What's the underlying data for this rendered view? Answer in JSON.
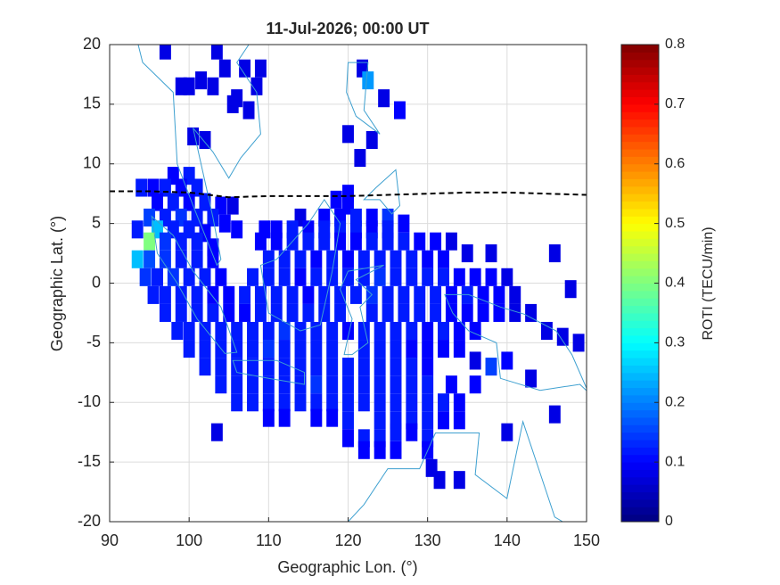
{
  "chart_data": {
    "type": "cellmap",
    "title": "11-Jul-2026; 00:00 UT",
    "x_label": "Geographic Lon. (°)",
    "y_label": "Geographic Lat. (°)",
    "colorbar_label": "ROTI (TECU/min)",
    "xlim": [
      90,
      150
    ],
    "xticks": [
      90,
      100,
      110,
      120,
      130,
      140,
      150
    ],
    "ylim": [
      -20,
      20
    ],
    "yticks": [
      -20,
      -15,
      -10,
      -5,
      0,
      5,
      10,
      15,
      20
    ],
    "clim": [
      0,
      0.8
    ],
    "cticks": [
      0,
      0.1,
      0.2,
      0.3,
      0.4,
      0.5,
      0.6,
      0.7,
      0.8
    ],
    "colormap": "jet",
    "grid": true,
    "equator": {
      "color": "#000000",
      "x": [
        90,
        95,
        100,
        105,
        110,
        115,
        120,
        125,
        130,
        135,
        140,
        145,
        150
      ],
      "y": [
        7.7,
        7.7,
        7.6,
        7.2,
        7.3,
        7.3,
        7.3,
        7.4,
        7.5,
        7.6,
        7.6,
        7.5,
        7.4
      ]
    },
    "points": [
      [
        97,
        19.5,
        0.08
      ],
      [
        103.5,
        19.5,
        0.08
      ],
      [
        104.5,
        18,
        0.08
      ],
      [
        107,
        18,
        0.08
      ],
      [
        109,
        18,
        0.08
      ],
      [
        121.8,
        18,
        0.08
      ],
      [
        122.5,
        17,
        0.22
      ],
      [
        101.5,
        17,
        0.08
      ],
      [
        99,
        16.5,
        0.08
      ],
      [
        108.5,
        16.5,
        0.08
      ],
      [
        100,
        16.5,
        0.08
      ],
      [
        103,
        16.5,
        0.08
      ],
      [
        106,
        15.5,
        0.08
      ],
      [
        124.5,
        15.5,
        0.08
      ],
      [
        126.5,
        14.5,
        0.1
      ],
      [
        105.5,
        15,
        0.08
      ],
      [
        107.5,
        14.5,
        0.08
      ],
      [
        100.5,
        12.3,
        0.08
      ],
      [
        102,
        12,
        0.08
      ],
      [
        120,
        12.5,
        0.08
      ],
      [
        123,
        12,
        0.08
      ],
      [
        121.5,
        10.5,
        0.08
      ],
      [
        98,
        9,
        0.1
      ],
      [
        100,
        9,
        0.12
      ],
      [
        94,
        8,
        0.12
      ],
      [
        95.5,
        8,
        0.1
      ],
      [
        97,
        8,
        0.12
      ],
      [
        99,
        8,
        0.1
      ],
      [
        101,
        8,
        0.12
      ],
      [
        120,
        7.5,
        0.1
      ],
      [
        96,
        6.8,
        0.1
      ],
      [
        98,
        6.8,
        0.12
      ],
      [
        100,
        6.8,
        0.1
      ],
      [
        102,
        6.8,
        0.12
      ],
      [
        104,
        6.5,
        0.1
      ],
      [
        105.5,
        6.5,
        0.08
      ],
      [
        118.5,
        7,
        0.1
      ],
      [
        120,
        6.5,
        0.1
      ],
      [
        95,
        5.5,
        0.15
      ],
      [
        97,
        5.5,
        0.12
      ],
      [
        99,
        5.5,
        0.14
      ],
      [
        101,
        5.5,
        0.12
      ],
      [
        103,
        5.5,
        0.12
      ],
      [
        104.5,
        5,
        0.1
      ],
      [
        114,
        5.5,
        0.08
      ],
      [
        117,
        5.5,
        0.1
      ],
      [
        119,
        5.5,
        0.1
      ],
      [
        121,
        5.5,
        0.12
      ],
      [
        123,
        5.5,
        0.1
      ],
      [
        125,
        5.5,
        0.14
      ],
      [
        93.5,
        4.5,
        0.12
      ],
      [
        96,
        4.5,
        0.25
      ],
      [
        98,
        4.5,
        0.12
      ],
      [
        100,
        4.5,
        0.12
      ],
      [
        102,
        4.2,
        0.1
      ],
      [
        106,
        4.5,
        0.1
      ],
      [
        109.5,
        4.5,
        0.1
      ],
      [
        111,
        4.5,
        0.1
      ],
      [
        113,
        4.5,
        0.12
      ],
      [
        115,
        4.5,
        0.1
      ],
      [
        117,
        4.5,
        0.12
      ],
      [
        119,
        4.5,
        0.12
      ],
      [
        121,
        4.5,
        0.12
      ],
      [
        123,
        4.5,
        0.1
      ],
      [
        125,
        4.5,
        0.12
      ],
      [
        127,
        5,
        0.1
      ],
      [
        95,
        3.5,
        0.4
      ],
      [
        97,
        3.5,
        0.14
      ],
      [
        99,
        3.5,
        0.12
      ],
      [
        101,
        3.5,
        0.12
      ],
      [
        103,
        3,
        0.1
      ],
      [
        109,
        3.5,
        0.1
      ],
      [
        111,
        3.5,
        0.1
      ],
      [
        113,
        3.5,
        0.12
      ],
      [
        115,
        3.5,
        0.12
      ],
      [
        117,
        3.5,
        0.12
      ],
      [
        119,
        3.5,
        0.1
      ],
      [
        121,
        3.5,
        0.1
      ],
      [
        123,
        3.5,
        0.12
      ],
      [
        125,
        3.5,
        0.12
      ],
      [
        127,
        3.5,
        0.12
      ],
      [
        129,
        3.5,
        0.1
      ],
      [
        131,
        3.5,
        0.1
      ],
      [
        133,
        3.5,
        0.08
      ],
      [
        93.5,
        2,
        0.25
      ],
      [
        95,
        2,
        0.16
      ],
      [
        97,
        2,
        0.14
      ],
      [
        99,
        2,
        0.12
      ],
      [
        101,
        2,
        0.12
      ],
      [
        103,
        2,
        0.1
      ],
      [
        110,
        2,
        0.12
      ],
      [
        112,
        2,
        0.12
      ],
      [
        114,
        2,
        0.12
      ],
      [
        116,
        2,
        0.1
      ],
      [
        118,
        2,
        0.12
      ],
      [
        120,
        2,
        0.1
      ],
      [
        122,
        2,
        0.12
      ],
      [
        124,
        2,
        0.12
      ],
      [
        126,
        2,
        0.12
      ],
      [
        128,
        2,
        0.12
      ],
      [
        130,
        2,
        0.1
      ],
      [
        132,
        2,
        0.1
      ],
      [
        135,
        2.5,
        0.08
      ],
      [
        138,
        2.5,
        0.08
      ],
      [
        146,
        2.5,
        0.08
      ],
      [
        94.5,
        0.5,
        0.14
      ],
      [
        96,
        0.5,
        0.12
      ],
      [
        98,
        0.5,
        0.14
      ],
      [
        100,
        0.5,
        0.12
      ],
      [
        102,
        0.5,
        0.12
      ],
      [
        104,
        0.5,
        0.1
      ],
      [
        108,
        0.5,
        0.12
      ],
      [
        110,
        0.5,
        0.12
      ],
      [
        112,
        0.5,
        0.12
      ],
      [
        114,
        0.5,
        0.1
      ],
      [
        116,
        0.5,
        0.12
      ],
      [
        118,
        0.5,
        0.12
      ],
      [
        120,
        0.5,
        0.12
      ],
      [
        122,
        0.5,
        0.12
      ],
      [
        124,
        0.5,
        0.14
      ],
      [
        126,
        0.5,
        0.12
      ],
      [
        128,
        0.5,
        0.12
      ],
      [
        130,
        0.5,
        0.12
      ],
      [
        132,
        0.5,
        0.12
      ],
      [
        134,
        0.5,
        0.1
      ],
      [
        136,
        0.5,
        0.1
      ],
      [
        138,
        0.5,
        0.1
      ],
      [
        140,
        0.5,
        0.08
      ],
      [
        95.5,
        -1,
        0.12
      ],
      [
        97,
        -1,
        0.12
      ],
      [
        99,
        -1,
        0.12
      ],
      [
        101,
        -1,
        0.12
      ],
      [
        103,
        -1,
        0.1
      ],
      [
        105,
        -1,
        0.1
      ],
      [
        107,
        -1,
        0.12
      ],
      [
        109,
        -1,
        0.12
      ],
      [
        111,
        -1,
        0.12
      ],
      [
        113,
        -1,
        0.12
      ],
      [
        115,
        -1,
        0.1
      ],
      [
        117,
        -1,
        0.12
      ],
      [
        119,
        -1,
        0.12
      ],
      [
        121,
        -1,
        0.12
      ],
      [
        123,
        -1,
        0.14
      ],
      [
        125,
        -1,
        0.12
      ],
      [
        127,
        -1,
        0.12
      ],
      [
        129,
        -1,
        0.12
      ],
      [
        131,
        -1,
        0.12
      ],
      [
        133,
        -1,
        0.1
      ],
      [
        135,
        -1,
        0.12
      ],
      [
        137,
        -1,
        0.1
      ],
      [
        139,
        -1,
        0.1
      ],
      [
        141,
        -1,
        0.08
      ],
      [
        148,
        -0.5,
        0.08
      ],
      [
        97,
        -2.5,
        0.12
      ],
      [
        99,
        -2.5,
        0.12
      ],
      [
        101,
        -2.5,
        0.12
      ],
      [
        103,
        -2.5,
        0.12
      ],
      [
        105,
        -2.5,
        0.1
      ],
      [
        107,
        -2.5,
        0.1
      ],
      [
        109,
        -2.5,
        0.12
      ],
      [
        111,
        -2.5,
        0.12
      ],
      [
        113,
        -2.5,
        0.12
      ],
      [
        115,
        -2.5,
        0.12
      ],
      [
        117,
        -2.5,
        0.12
      ],
      [
        119,
        -2.5,
        0.12
      ],
      [
        123,
        -2.5,
        0.12
      ],
      [
        125,
        -2.5,
        0.12
      ],
      [
        127,
        -2.5,
        0.12
      ],
      [
        129,
        -2.5,
        0.12
      ],
      [
        131,
        -2.5,
        0.12
      ],
      [
        133,
        -2.5,
        0.1
      ],
      [
        135,
        -2.5,
        0.1
      ],
      [
        137,
        -2.5,
        0.1
      ],
      [
        139,
        -2.5,
        0.1
      ],
      [
        141,
        -2.5,
        0.08
      ],
      [
        143,
        -2.5,
        0.08
      ],
      [
        98.5,
        -4,
        0.12
      ],
      [
        100,
        -4,
        0.12
      ],
      [
        102,
        -4,
        0.12
      ],
      [
        104,
        -4,
        0.12
      ],
      [
        106,
        -4,
        0.12
      ],
      [
        108,
        -4,
        0.12
      ],
      [
        110,
        -4,
        0.12
      ],
      [
        112,
        -4,
        0.14
      ],
      [
        114,
        -4,
        0.12
      ],
      [
        116,
        -4,
        0.12
      ],
      [
        118,
        -4,
        0.12
      ],
      [
        120,
        -4,
        0.1
      ],
      [
        122,
        -4,
        0.12
      ],
      [
        124,
        -4,
        0.12
      ],
      [
        126,
        -4,
        0.12
      ],
      [
        128,
        -4,
        0.12
      ],
      [
        130,
        -4,
        0.1
      ],
      [
        132,
        -4,
        0.12
      ],
      [
        134,
        -4,
        0.1
      ],
      [
        136,
        -4,
        0.1
      ],
      [
        145,
        -4,
        0.08
      ],
      [
        147,
        -4.5,
        0.08
      ],
      [
        100,
        -5.5,
        0.12
      ],
      [
        102,
        -5.5,
        0.12
      ],
      [
        104,
        -5.5,
        0.12
      ],
      [
        106,
        -5.5,
        0.12
      ],
      [
        108,
        -5.5,
        0.12
      ],
      [
        110,
        -5.5,
        0.14
      ],
      [
        112,
        -5.5,
        0.12
      ],
      [
        114,
        -5.5,
        0.12
      ],
      [
        116,
        -5.5,
        0.12
      ],
      [
        118,
        -5.5,
        0.12
      ],
      [
        122,
        -5.5,
        0.12
      ],
      [
        124,
        -5.5,
        0.12
      ],
      [
        126,
        -5.5,
        0.12
      ],
      [
        128,
        -5.5,
        0.1
      ],
      [
        130,
        -5.5,
        0.1
      ],
      [
        132,
        -5.5,
        0.1
      ],
      [
        134,
        -5.5,
        0.1
      ],
      [
        149,
        -5,
        0.08
      ],
      [
        102,
        -7,
        0.12
      ],
      [
        104,
        -7,
        0.12
      ],
      [
        106,
        -7,
        0.12
      ],
      [
        108,
        -7,
        0.12
      ],
      [
        110,
        -7,
        0.12
      ],
      [
        112,
        -7,
        0.12
      ],
      [
        114,
        -7,
        0.12
      ],
      [
        116,
        -7,
        0.12
      ],
      [
        118,
        -7,
        0.12
      ],
      [
        120,
        -7,
        0.12
      ],
      [
        122,
        -7,
        0.12
      ],
      [
        124,
        -7,
        0.12
      ],
      [
        126,
        -7,
        0.12
      ],
      [
        128,
        -7,
        0.12
      ],
      [
        130,
        -7,
        0.1
      ],
      [
        136,
        -6.5,
        0.08
      ],
      [
        138,
        -7,
        0.15
      ],
      [
        140,
        -6.5,
        0.1
      ],
      [
        104,
        -8.5,
        0.12
      ],
      [
        106,
        -8.5,
        0.12
      ],
      [
        108,
        -8.5,
        0.12
      ],
      [
        110,
        -8.5,
        0.12
      ],
      [
        112,
        -8.5,
        0.12
      ],
      [
        114,
        -8.5,
        0.12
      ],
      [
        116,
        -8.5,
        0.14
      ],
      [
        118,
        -8.5,
        0.12
      ],
      [
        120,
        -8.5,
        0.12
      ],
      [
        122,
        -8.5,
        0.12
      ],
      [
        124,
        -8.5,
        0.12
      ],
      [
        126,
        -8.5,
        0.12
      ],
      [
        128,
        -8.5,
        0.12
      ],
      [
        130,
        -8.5,
        0.12
      ],
      [
        133,
        -8.5,
        0.1
      ],
      [
        136,
        -8.5,
        0.1
      ],
      [
        143,
        -8,
        0.08
      ],
      [
        106,
        -10,
        0.12
      ],
      [
        108,
        -10,
        0.12
      ],
      [
        110,
        -10,
        0.12
      ],
      [
        112,
        -10,
        0.12
      ],
      [
        114,
        -10,
        0.12
      ],
      [
        116,
        -10,
        0.12
      ],
      [
        118,
        -10,
        0.12
      ],
      [
        120,
        -10,
        0.12
      ],
      [
        122,
        -10,
        0.12
      ],
      [
        124,
        -10,
        0.12
      ],
      [
        126,
        -10,
        0.12
      ],
      [
        128,
        -10,
        0.12
      ],
      [
        130,
        -10,
        0.12
      ],
      [
        132,
        -10,
        0.12
      ],
      [
        134,
        -10,
        0.1
      ],
      [
        110,
        -11.3,
        0.1
      ],
      [
        112,
        -11.3,
        0.1
      ],
      [
        116,
        -11.3,
        0.1
      ],
      [
        118,
        -11.3,
        0.1
      ],
      [
        120,
        -11.5,
        0.12
      ],
      [
        124,
        -11.5,
        0.12
      ],
      [
        126,
        -11.5,
        0.12
      ],
      [
        128,
        -11.5,
        0.12
      ],
      [
        130,
        -11.5,
        0.12
      ],
      [
        132,
        -11.5,
        0.1
      ],
      [
        134,
        -11.5,
        0.1
      ],
      [
        146,
        -11,
        0.08
      ],
      [
        103.5,
        -12.5,
        0.08
      ],
      [
        120,
        -13,
        0.1
      ],
      [
        122,
        -13,
        0.12
      ],
      [
        124,
        -13,
        0.12
      ],
      [
        126,
        -12.5,
        0.12
      ],
      [
        128,
        -12.5,
        0.1
      ],
      [
        130,
        -13,
        0.12
      ],
      [
        140,
        -12.5,
        0.08
      ],
      [
        122,
        -14,
        0.1
      ],
      [
        124,
        -14,
        0.1
      ],
      [
        126,
        -14,
        0.1
      ],
      [
        130,
        -14,
        0.1
      ],
      [
        130.5,
        -15.5,
        0.08
      ],
      [
        131.5,
        -16.5,
        0.08
      ],
      [
        134,
        -16.5,
        0.08
      ]
    ]
  }
}
